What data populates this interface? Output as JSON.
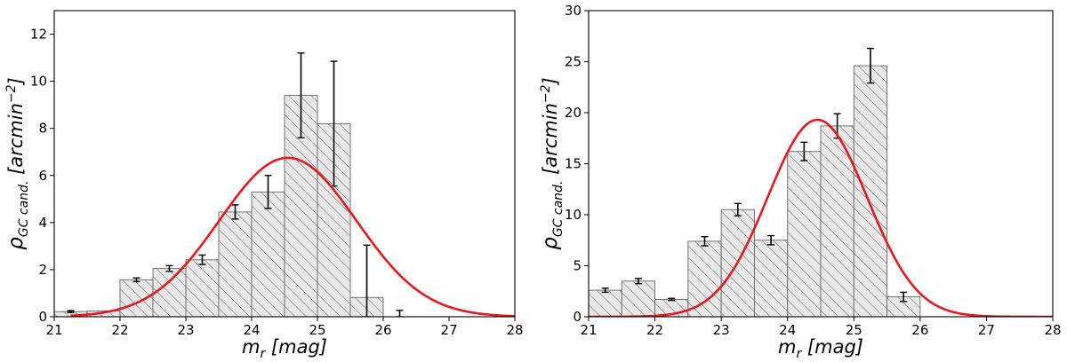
{
  "chart_data": [
    {
      "type": "bar",
      "panel": "left",
      "xlabel": "m_r [mag]",
      "ylabel": "ρ_GC cand. [arcmin^-2]",
      "xlim": [
        21,
        28
      ],
      "ylim": [
        0,
        13
      ],
      "xticks": [
        "21",
        "22",
        "23",
        "24",
        "25",
        "26",
        "27",
        "28"
      ],
      "yticks": [
        "0",
        "2",
        "4",
        "6",
        "8",
        "10",
        "12"
      ],
      "bin_width": 0.5,
      "bars": [
        {
          "x_left": 21.0,
          "value": 0.22,
          "err": 0.04
        },
        {
          "x_left": 21.5,
          "value": 0.25,
          "err": 0.0
        },
        {
          "x_left": 22.0,
          "value": 1.57,
          "err": 0.08
        },
        {
          "x_left": 22.5,
          "value": 2.05,
          "err": 0.12
        },
        {
          "x_left": 23.0,
          "value": 2.42,
          "err": 0.2
        },
        {
          "x_left": 23.5,
          "value": 4.45,
          "err": 0.3
        },
        {
          "x_left": 24.0,
          "value": 5.3,
          "err": 0.7
        },
        {
          "x_left": 24.5,
          "value": 9.4,
          "err": 1.8
        },
        {
          "x_left": 25.0,
          "value": 8.2,
          "err": 2.65
        },
        {
          "x_left": 25.5,
          "value": 0.82,
          "err": 2.22
        }
      ],
      "extra_errorbars": [
        {
          "x": 26.25,
          "value": 0.0,
          "err": 0.27
        }
      ],
      "curve": {
        "type": "gaussian",
        "peak": 6.75,
        "mean": 24.55,
        "sigma": 1.04,
        "color": "#e41a1c"
      },
      "hatch": true,
      "grid": false
    },
    {
      "type": "bar",
      "panel": "right",
      "xlabel": "m_r [mag]",
      "ylabel": "ρ_GC cand. [arcmin^-2]",
      "xlim": [
        21,
        28
      ],
      "ylim": [
        0,
        30
      ],
      "xticks": [
        "21",
        "22",
        "23",
        "24",
        "25",
        "26",
        "27",
        "28"
      ],
      "yticks": [
        "0",
        "5",
        "10",
        "15",
        "20",
        "25",
        "30"
      ],
      "bin_width": 0.5,
      "bars": [
        {
          "x_left": 21.0,
          "value": 2.6,
          "err": 0.2
        },
        {
          "x_left": 21.5,
          "value": 3.5,
          "err": 0.25
        },
        {
          "x_left": 22.0,
          "value": 1.7,
          "err": 0.1
        },
        {
          "x_left": 22.5,
          "value": 7.4,
          "err": 0.45
        },
        {
          "x_left": 23.0,
          "value": 10.5,
          "err": 0.6
        },
        {
          "x_left": 23.5,
          "value": 7.5,
          "err": 0.45
        },
        {
          "x_left": 24.0,
          "value": 16.2,
          "err": 0.9
        },
        {
          "x_left": 24.5,
          "value": 18.7,
          "err": 1.2
        },
        {
          "x_left": 25.0,
          "value": 24.6,
          "err": 1.7
        },
        {
          "x_left": 25.5,
          "value": 1.95,
          "err": 0.45
        }
      ],
      "extra_errorbars": [],
      "curve": {
        "type": "gaussian",
        "peak": 19.3,
        "mean": 24.45,
        "sigma": 0.75,
        "color": "#e41a1c"
      },
      "hatch": true,
      "grid": false
    }
  ]
}
